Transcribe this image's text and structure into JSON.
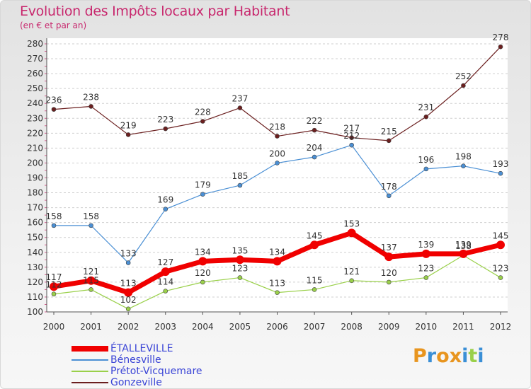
{
  "chart_data": {
    "type": "line",
    "title": "Evolution des Impôts locaux par Habitant",
    "subtitle": "(en € et par an)",
    "xlabel": "",
    "ylabel": "",
    "x": [
      "2000",
      "2001",
      "2002",
      "2003",
      "2004",
      "2005",
      "2006",
      "2007",
      "2008",
      "2009",
      "2010",
      "2011",
      "2012"
    ],
    "ylim": [
      100,
      280
    ],
    "yticks": [
      100,
      110,
      120,
      130,
      140,
      150,
      160,
      170,
      180,
      190,
      200,
      210,
      220,
      230,
      240,
      250,
      260,
      270,
      280
    ],
    "grid": "horizontal dashed",
    "series": [
      {
        "name": "Gonzeville",
        "color": "#6b1f1f",
        "values": [
          236,
          238,
          219,
          223,
          228,
          237,
          218,
          222,
          217,
          215,
          231,
          252,
          278
        ]
      },
      {
        "name": "Bénesville",
        "color": "#4a8fd4",
        "values": [
          158,
          158,
          133,
          169,
          179,
          185,
          200,
          204,
          212,
          178,
          196,
          198,
          193
        ]
      },
      {
        "name": "Prétot-Vicquemare",
        "color": "#9ad04a",
        "values": [
          112,
          115,
          102,
          114,
          120,
          123,
          113,
          115,
          121,
          120,
          123,
          138,
          123
        ]
      },
      {
        "name": "ÉTALLEVILLE",
        "color": "#f00000",
        "values": [
          117,
          121,
          113,
          127,
          134,
          135,
          134,
          145,
          153,
          137,
          139,
          139,
          145
        ]
      }
    ],
    "legend": [
      "ÉTALLEVILLE",
      "Bénesville",
      "Prétot-Vicquemare",
      "Gonzeville"
    ]
  },
  "brand": {
    "text": "Proxiti",
    "colors": [
      "#e8951f",
      "#3a8fd6",
      "#e8951f",
      "#e8951f",
      "#3a8fd6",
      "#9ad04a",
      "#3a8fd6"
    ]
  }
}
